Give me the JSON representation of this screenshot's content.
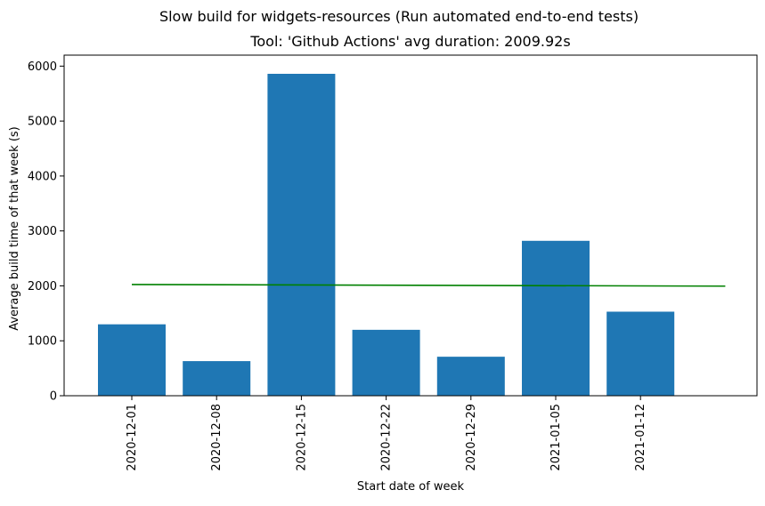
{
  "chart_data": {
    "type": "bar",
    "suptitle": "Slow build for widgets-resources (Run automated end-to-end tests)",
    "title": "Tool: 'Github Actions' avg duration: 2009.92s",
    "xlabel": "Start date of week",
    "ylabel": "Average build time of that week (s)",
    "categories": [
      "2020-12-01",
      "2020-12-08",
      "2020-12-15",
      "2020-12-22",
      "2020-12-29",
      "2021-01-05",
      "2021-01-12"
    ],
    "values": [
      1300,
      630,
      5860,
      1200,
      710,
      2820,
      1530
    ],
    "bar_color": "#1f77b4",
    "trend_line": {
      "color": "#008000",
      "start": 2025,
      "end": 1995
    },
    "ylim": [
      0,
      6200
    ],
    "yticks": [
      0,
      1000,
      2000,
      3000,
      4000,
      5000,
      6000
    ],
    "grid": false
  }
}
